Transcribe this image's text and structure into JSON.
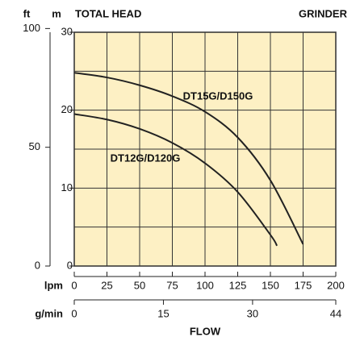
{
  "chart_data": {
    "type": "line",
    "title": "TOTAL HEAD",
    "subtitle": "GRINDER",
    "x_label": "FLOW",
    "y_unit": "m",
    "y2_unit": "ft",
    "x_unit": "lpm",
    "x2_unit": "g/min",
    "xlim": [
      0,
      200
    ],
    "xticks": [
      0,
      25,
      50,
      75,
      100,
      125,
      150,
      175,
      200
    ],
    "x2lim": [
      0,
      44
    ],
    "x2ticks": [
      0,
      15,
      30,
      44
    ],
    "ylim": [
      0,
      30
    ],
    "yticks": [
      0,
      10,
      20,
      30
    ],
    "ygrid": [
      0,
      5,
      10,
      15,
      20,
      25,
      30
    ],
    "y2lim": [
      0,
      98.43
    ],
    "y2ticks": [
      0,
      50,
      100
    ],
    "grid": true,
    "background": "#fdf0c4",
    "line_color": "#222222",
    "series": [
      {
        "name": "DT15G/D150G",
        "color": "#222222",
        "x": [
          0,
          25,
          50,
          75,
          100,
          125,
          150,
          175
        ],
        "values": [
          24.8,
          24.2,
          23.2,
          21.8,
          19.8,
          16.5,
          11,
          2.8
        ]
      },
      {
        "name": "DT12G/D120G",
        "color": "#222222",
        "x": [
          0,
          25,
          50,
          75,
          100,
          125,
          150,
          155
        ],
        "values": [
          19.5,
          18.8,
          17.6,
          15.8,
          13.2,
          9.5,
          4,
          2.6
        ]
      }
    ]
  }
}
